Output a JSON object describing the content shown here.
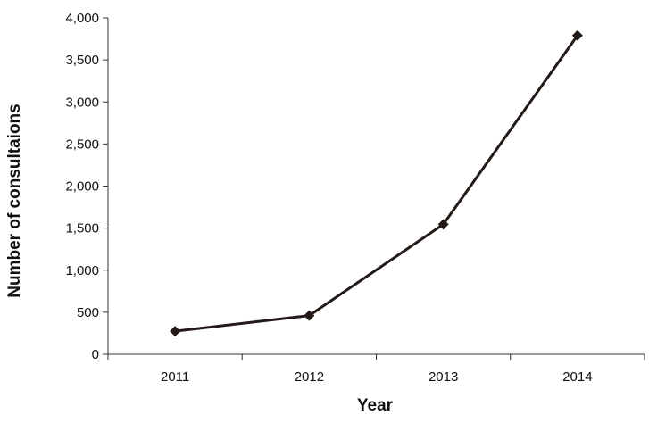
{
  "chart_data": {
    "type": "line",
    "title": "",
    "xlabel": "Year",
    "ylabel": "Number of consultaions",
    "categories": [
      "2011",
      "2012",
      "2013",
      "2014"
    ],
    "series": [
      {
        "values": [
          275,
          460,
          1545,
          3790
        ],
        "marker": "diamond"
      }
    ],
    "ylim": [
      0,
      4000
    ],
    "yticks": [
      0,
      500,
      1000,
      1500,
      2000,
      2500,
      3000,
      3500,
      4000
    ],
    "ytick_labels": [
      "0",
      "500",
      "1,000",
      "1,500",
      "2,000",
      "2,500",
      "3,000",
      "3,500",
      "4,000"
    ],
    "grid": false,
    "legend": "none",
    "colors": {
      "line": "#231a17",
      "axis": "#333333"
    }
  }
}
